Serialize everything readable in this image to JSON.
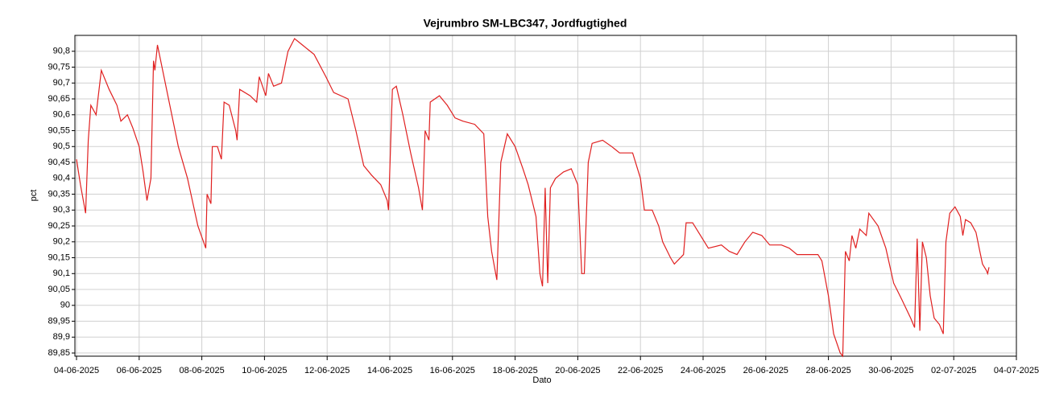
{
  "chart_data": {
    "type": "line",
    "title": "Vejrumbro SM-LBC347, Jordfugtighed",
    "x_label": "Dato",
    "y_label": "pct",
    "grid": true,
    "xlim": [
      "2025-06-04",
      "2025-07-04"
    ],
    "xticks": [
      {
        "value": "2025-06-04",
        "label": "04-06-2025"
      },
      {
        "value": "2025-06-06",
        "label": "06-06-2025"
      },
      {
        "value": "2025-06-08",
        "label": "08-06-2025"
      },
      {
        "value": "2025-06-10",
        "label": "10-06-2025"
      },
      {
        "value": "2025-06-12",
        "label": "12-06-2025"
      },
      {
        "value": "2025-06-14",
        "label": "14-06-2025"
      },
      {
        "value": "2025-06-16",
        "label": "16-06-2025"
      },
      {
        "value": "2025-06-18",
        "label": "18-06-2025"
      },
      {
        "value": "2025-06-20",
        "label": "20-06-2025"
      },
      {
        "value": "2025-06-22",
        "label": "22-06-2025"
      },
      {
        "value": "2025-06-24",
        "label": "24-06-2025"
      },
      {
        "value": "2025-06-26",
        "label": "26-06-2025"
      },
      {
        "value": "2025-06-28",
        "label": "28-06-2025"
      },
      {
        "value": "2025-06-30",
        "label": "30-06-2025"
      },
      {
        "value": "2025-07-02",
        "label": "02-07-2025"
      },
      {
        "value": "2025-07-04",
        "label": "04-07-2025"
      }
    ],
    "ylim": [
      89.84,
      90.85
    ],
    "yticks": [
      {
        "value": 89.85,
        "label": "89,85"
      },
      {
        "value": 89.9,
        "label": "89,9"
      },
      {
        "value": 89.95,
        "label": "89,95"
      },
      90,
      {
        "value": 90.05,
        "label": "90,05"
      },
      {
        "value": 90.1,
        "label": "90,1"
      },
      {
        "value": 90.15,
        "label": "90,15"
      },
      {
        "value": 90.2,
        "label": "90,2"
      },
      {
        "value": 90.25,
        "label": "90,25"
      },
      {
        "value": 90.3,
        "label": "90,3"
      },
      {
        "value": 90.35,
        "label": "90,35"
      },
      {
        "value": 90.4,
        "label": "90,4"
      },
      {
        "value": 90.45,
        "label": "90,45"
      },
      {
        "value": 90.5,
        "label": "90,5"
      },
      {
        "value": 90.55,
        "label": "90,55"
      },
      {
        "value": 90.6,
        "label": "90,6"
      },
      {
        "value": 90.65,
        "label": "90,65"
      },
      {
        "value": 90.7,
        "label": "90,7"
      },
      {
        "value": 90.75,
        "label": "90,75"
      },
      {
        "value": 90.8,
        "label": "90,8"
      }
    ],
    "x": [
      "2025-06-04 00:00",
      "2025-06-04 03:00",
      "2025-06-04 07:00",
      "2025-06-04 09:00",
      "2025-06-04 11:00",
      "2025-06-04 15:00",
      "2025-06-04 19:00",
      "2025-06-05 01:00",
      "2025-06-05 07:00",
      "2025-06-05 10:00",
      "2025-06-05 15:00",
      "2025-06-05 19:00",
      "2025-06-06 00:00",
      "2025-06-06 03:00",
      "2025-06-06 06:00",
      "2025-06-06 09:00",
      "2025-06-06 11:00",
      "2025-06-06 12:00",
      "2025-06-06 14:00",
      "2025-06-06 20:00",
      "2025-06-07 01:00",
      "2025-06-07 06:00",
      "2025-06-07 13:00",
      "2025-06-07 21:00",
      "2025-06-08 03:00",
      "2025-06-08 04:00",
      "2025-06-08 07:00",
      "2025-06-08 08:00",
      "2025-06-08 12:00",
      "2025-06-08 15:00",
      "2025-06-08 17:00",
      "2025-06-08 21:00",
      "2025-06-09 02:00",
      "2025-06-09 03:00",
      "2025-06-09 05:00",
      "2025-06-09 13:00",
      "2025-06-09 18:00",
      "2025-06-09 20:00",
      "2025-06-10 01:00",
      "2025-06-10 03:00",
      "2025-06-10 07:00",
      "2025-06-10 13:00",
      "2025-06-10 18:00",
      "2025-06-10 23:00",
      "2025-06-11 05:00",
      "2025-06-11 14:00",
      "2025-06-11 23:00",
      "2025-06-12 05:00",
      "2025-06-12 16:00",
      "2025-06-12 22:00",
      "2025-06-13 04:00",
      "2025-06-13 10:00",
      "2025-06-13 17:00",
      "2025-06-13 22:00",
      "2025-06-13 23:00",
      "2025-06-14 02:00",
      "2025-06-14 05:00",
      "2025-06-14 10:00",
      "2025-06-14 16:00",
      "2025-06-14 22:00",
      "2025-06-15 01:00",
      "2025-06-15 03:00",
      "2025-06-15 06:00",
      "2025-06-15 07:00",
      "2025-06-15 14:00",
      "2025-06-15 20:00",
      "2025-06-16 02:00",
      "2025-06-16 08:00",
      "2025-06-16 17:00",
      "2025-06-17 00:00",
      "2025-06-17 03:00",
      "2025-06-17 06:00",
      "2025-06-17 10:00",
      "2025-06-17 13:00",
      "2025-06-17 18:00",
      "2025-06-18 00:00",
      "2025-06-18 06:00",
      "2025-06-18 10:00",
      "2025-06-18 16:00",
      "2025-06-18 19:00",
      "2025-06-18 21:00",
      "2025-06-18 23:00",
      "2025-06-19 01:00",
      "2025-06-19 03:00",
      "2025-06-19 07:00",
      "2025-06-19 13:00",
      "2025-06-19 19:00",
      "2025-06-20 00:00",
      "2025-06-20 03:00",
      "2025-06-20 05:00",
      "2025-06-20 08:00",
      "2025-06-20 11:00",
      "2025-06-20 19:00",
      "2025-06-21 02:00",
      "2025-06-21 08:00",
      "2025-06-21 18:00",
      "2025-06-22 00:00",
      "2025-06-22 03:00",
      "2025-06-22 09:00",
      "2025-06-22 14:00",
      "2025-06-22 17:00",
      "2025-06-22 23:00",
      "2025-06-23 02:00",
      "2025-06-23 09:00",
      "2025-06-23 11:00",
      "2025-06-23 16:00",
      "2025-06-23 22:00",
      "2025-06-24 04:00",
      "2025-06-24 14:00",
      "2025-06-24 20:00",
      "2025-06-25 02:00",
      "2025-06-25 08:00",
      "2025-06-25 14:00",
      "2025-06-25 21:00",
      "2025-06-26 03:00",
      "2025-06-26 12:00",
      "2025-06-26 18:00",
      "2025-06-27 00:00",
      "2025-06-27 06:00",
      "2025-06-27 16:00",
      "2025-06-27 19:00",
      "2025-06-28 00:00",
      "2025-06-28 04:00",
      "2025-06-28 09:00",
      "2025-06-28 11:00",
      "2025-06-28 13:00",
      "2025-06-28 16:00",
      "2025-06-28 18:00",
      "2025-06-28 21:00",
      "2025-06-29 00:00",
      "2025-06-29 05:00",
      "2025-06-29 07:00",
      "2025-06-29 14:00",
      "2025-06-29 20:00",
      "2025-06-30 02:00",
      "2025-06-30 08:00",
      "2025-06-30 15:00",
      "2025-06-30 18:00",
      "2025-06-30 20:00",
      "2025-06-30 22:00",
      "2025-07-01 00:00",
      "2025-07-01 03:00",
      "2025-07-01 06:00",
      "2025-07-01 09:00",
      "2025-07-01 13:00",
      "2025-07-01 16:00",
      "2025-07-01 18:00",
      "2025-07-01 21:00",
      "2025-07-02 01:00",
      "2025-07-02 05:00",
      "2025-07-02 07:00",
      "2025-07-02 09:00",
      "2025-07-02 13:00",
      "2025-07-02 17:00",
      "2025-07-02 20:00",
      "2025-07-02 22:00",
      "2025-07-03 01:00",
      "2025-07-03 02:00",
      "2025-07-03 03:00"
    ],
    "series": [
      {
        "name": "pct",
        "color": "#e02020",
        "values": [
          90.46,
          90.38,
          90.29,
          90.52,
          90.63,
          90.6,
          90.74,
          90.68,
          90.63,
          90.58,
          90.6,
          90.56,
          90.5,
          90.42,
          90.33,
          90.4,
          90.77,
          90.74,
          90.82,
          90.7,
          90.6,
          90.5,
          90.4,
          90.25,
          90.18,
          90.35,
          90.32,
          90.5,
          90.5,
          90.46,
          90.64,
          90.63,
          90.55,
          90.52,
          90.68,
          90.66,
          90.64,
          90.72,
          90.66,
          90.73,
          90.69,
          90.7,
          90.8,
          90.84,
          90.82,
          90.79,
          90.72,
          90.67,
          90.65,
          90.55,
          90.44,
          90.41,
          90.38,
          90.33,
          90.3,
          90.68,
          90.69,
          90.6,
          90.48,
          90.37,
          90.3,
          90.55,
          90.52,
          90.64,
          90.66,
          90.63,
          90.59,
          90.58,
          90.57,
          90.54,
          90.28,
          90.17,
          90.08,
          90.45,
          90.54,
          90.5,
          90.43,
          90.38,
          90.28,
          90.1,
          90.06,
          90.37,
          90.07,
          90.37,
          90.4,
          90.42,
          90.43,
          90.38,
          90.1,
          90.1,
          90.45,
          90.51,
          90.52,
          90.5,
          90.48,
          90.48,
          90.4,
          90.3,
          90.3,
          90.25,
          90.2,
          90.15,
          90.13,
          90.16,
          90.26,
          90.26,
          90.22,
          90.18,
          90.19,
          90.17,
          90.16,
          90.2,
          90.23,
          90.22,
          90.19,
          90.19,
          90.18,
          90.16,
          90.16,
          90.16,
          90.14,
          90.03,
          89.91,
          89.85,
          89.84,
          90.17,
          90.14,
          90.22,
          90.18,
          90.24,
          90.22,
          90.29,
          90.25,
          90.18,
          90.07,
          90.02,
          89.96,
          89.93,
          90.21,
          89.92,
          90.2,
          90.15,
          90.03,
          89.96,
          89.94,
          89.91,
          90.2,
          90.29,
          90.31,
          90.28,
          90.22,
          90.27,
          90.26,
          90.23,
          90.17,
          90.13,
          90.11,
          90.1,
          90.12
        ]
      }
    ]
  }
}
